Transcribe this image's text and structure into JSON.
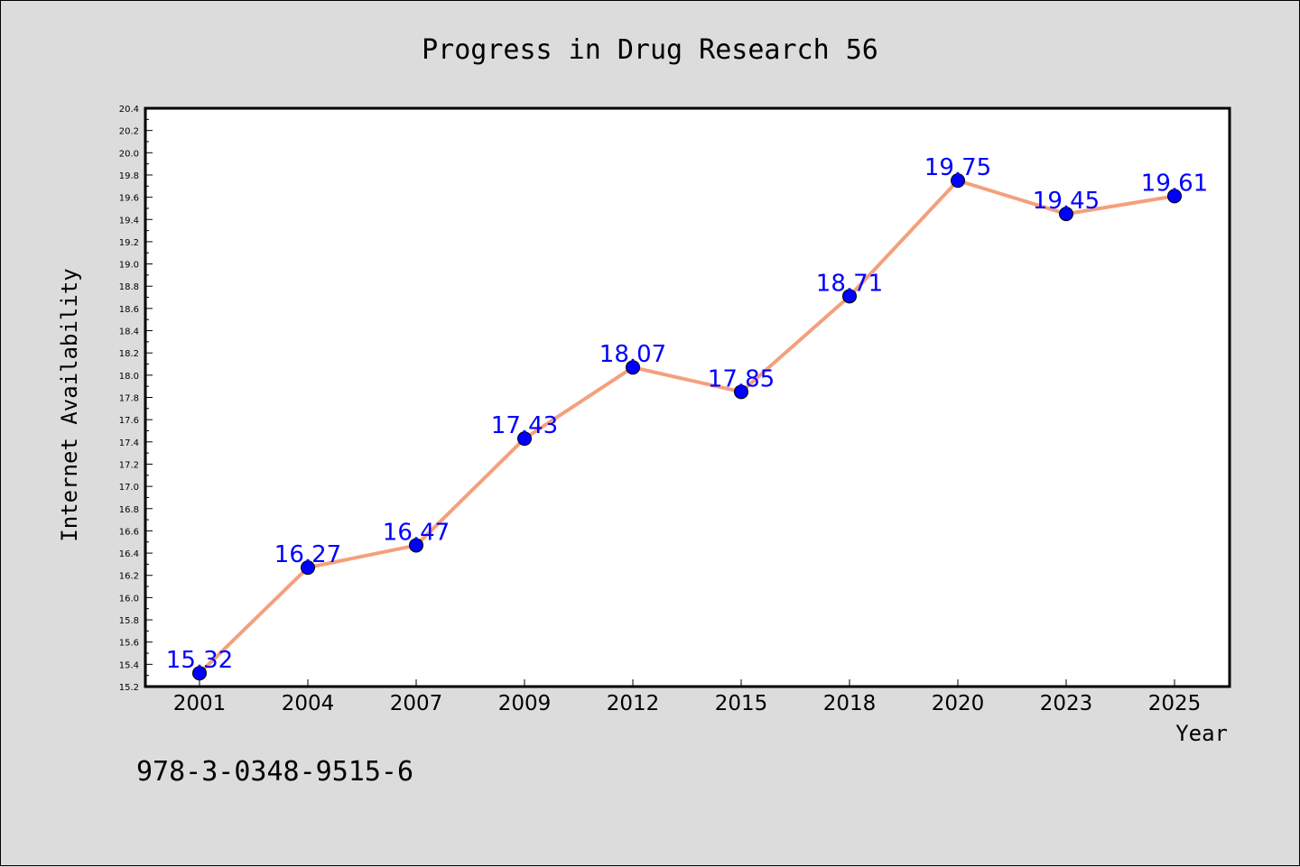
{
  "chart_data": {
    "type": "line",
    "title": "Progress in Drug Research 56",
    "xlabel": "Year",
    "ylabel": "Internet Availability",
    "categories": [
      "2001",
      "2004",
      "2007",
      "2009",
      "2012",
      "2015",
      "2018",
      "2020",
      "2023",
      "2025"
    ],
    "series": [
      {
        "values": [
          15.32,
          16.27,
          16.47,
          17.43,
          18.07,
          17.85,
          18.71,
          19.75,
          19.45,
          19.61
        ],
        "data_labels": [
          "15.32",
          "16.27",
          "16.47",
          "17.43",
          "18.07",
          "17.85",
          "18.71",
          "19.75",
          "19.45",
          "19.61"
        ],
        "line_color": "#f4a07c",
        "marker_color": "#0000ff"
      }
    ],
    "ylim": [
      15.2,
      20.4
    ],
    "yticks": [
      "15.2",
      "15.4",
      "15.6",
      "15.8",
      "16.0",
      "16.2",
      "16.4",
      "16.6",
      "16.8",
      "17.0",
      "17.2",
      "17.4",
      "17.6",
      "17.8",
      "18.0",
      "18.2",
      "18.4",
      "18.6",
      "18.8",
      "19.0",
      "19.2",
      "19.4",
      "19.6",
      "19.8",
      "20.0",
      "20.2",
      "20.4"
    ],
    "grid": false,
    "legend": "none",
    "label_color": "#0000ff",
    "background": "#dcdcdc",
    "plot_background": "#ffffff"
  },
  "footer": {
    "isbn": "978-3-0348-9515-6"
  }
}
